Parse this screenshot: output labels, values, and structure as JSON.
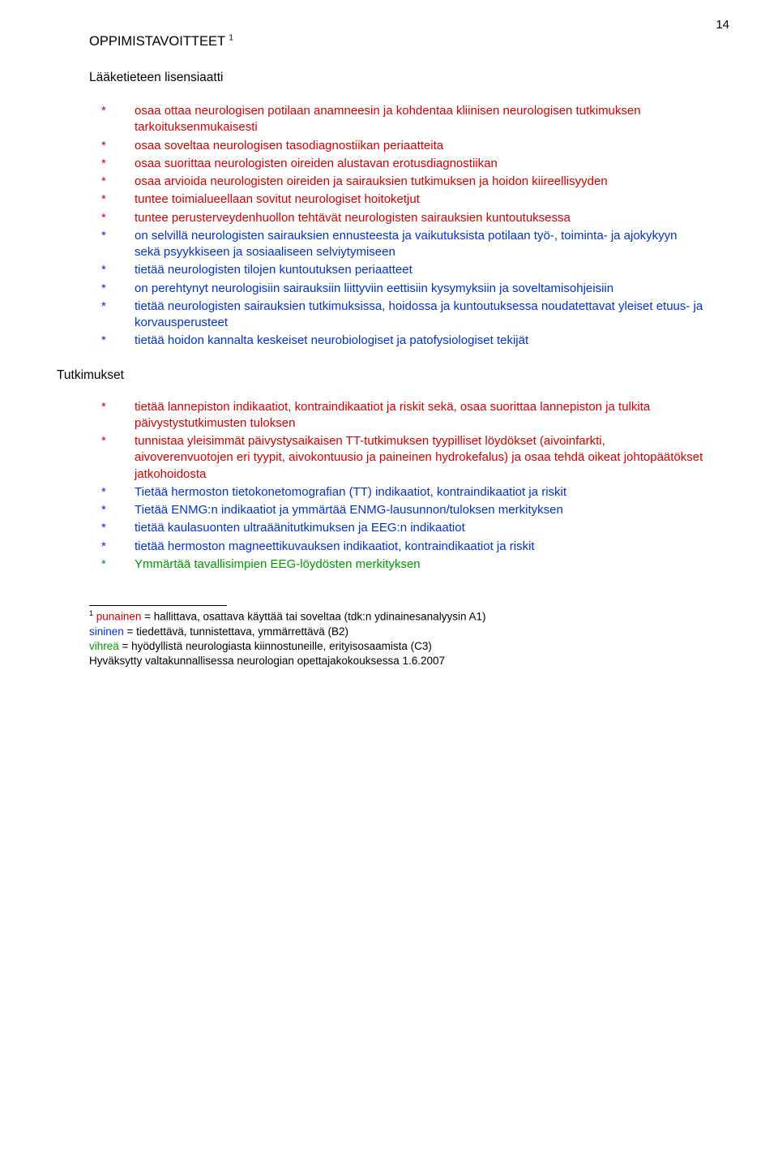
{
  "page_number": "14",
  "heading": "OPPIMISTAVOITTEET",
  "heading_sup": "1",
  "subheading": "Lääketieteen lisensiaatti",
  "section2_heading": "Tutkimukset",
  "colors": {
    "red": "#d40000",
    "blue": "#0033cc",
    "green": "#009900",
    "background": "#ffffff",
    "text": "#000000"
  },
  "list1": [
    {
      "color": "red",
      "text": "osaa ottaa neurologisen potilaan anamneesin ja kohdentaa kliinisen neurologisen tutkimuksen tarkoituksenmukaisesti"
    },
    {
      "color": "red",
      "text": "osaa soveltaa neurologisen tasodiagnostiikan periaatteita"
    },
    {
      "color": "red",
      "text": "osaa suorittaa neurologisten oireiden alustavan erotusdiagnostiikan"
    },
    {
      "color": "red",
      "text": "osaa arvioida neurologisten oireiden ja sairauksien tutkimuksen ja hoidon kiireellisyyden"
    },
    {
      "color": "red",
      "text": "tuntee toimialueellaan sovitut neurologiset hoitoketjut"
    },
    {
      "color": "red",
      "text": "tuntee perusterveydenhuollon tehtävät neurologisten sairauksien kuntoutuksessa"
    },
    {
      "color": "blue",
      "text": "on selvillä neurologisten sairauksien ennusteesta ja vaikutuksista potilaan työ-, toiminta- ja ajokykyyn sekä psyykkiseen ja sosiaaliseen selviytymiseen"
    },
    {
      "color": "blue",
      "text": "tietää neurologisten tilojen kuntoutuksen periaatteet"
    },
    {
      "color": "blue",
      "text": "on perehtynyt neurologisiin sairauksiin liittyviin eettisiin kysymyksiin ja soveltamisohjeisiin"
    },
    {
      "color": "blue",
      "text": "tietää neurologisten sairauksien tutkimuksissa, hoidossa ja kuntoutuksessa noudatettavat yleiset etuus- ja korvausperusteet"
    },
    {
      "color": "blue",
      "text": "tietää hoidon kannalta keskeiset neurobiologiset ja patofysiologiset tekijät"
    }
  ],
  "list2": [
    {
      "color": "red",
      "text": "tietää lannepiston indikaatiot, kontraindikaatiot ja riskit sekä, osaa suorittaa lannepiston ja tulkita päivystystutkimusten tuloksen"
    },
    {
      "color": "red",
      "text": "tunnistaa yleisimmät päivystysaikaisen TT-tutkimuksen tyypilliset löydökset (aivoinfarkti, aivoverenvuotojen eri tyypit, aivokontuusio ja paineinen hydrokefalus) ja osaa tehdä oikeat johtopäätökset jatkohoidosta"
    },
    {
      "color": "blue",
      "text": "Tietää hermoston tietokonetomografian (TT) indikaatiot, kontraindikaatiot ja riskit"
    },
    {
      "color": "blue",
      "text": "Tietää ENMG:n indikaatiot ja ymmärtää ENMG-lausunnon/tuloksen merkityksen"
    },
    {
      "color": "blue",
      "text": "tietää kaulasuonten ultraäänitutkimuksen ja EEG:n indikaatiot"
    },
    {
      "color": "blue",
      "text": "tietää hermoston magneettikuvauksen indikaatiot, kontraindikaatiot ja riskit"
    },
    {
      "color": "green",
      "text": "Ymmärtää tavallisimpien EEG-löydösten merkityksen"
    }
  ],
  "footnote": {
    "sup": "1",
    "line1_prefix": "punainen",
    "line1_rest": " = hallittava, osattava käyttää tai soveltaa (tdk:n ydinainesanalyysin A1)",
    "line2_prefix": "sininen",
    "line2_rest": " = tiedettävä, tunnistettava, ymmärrettävä (B2)",
    "line3_prefix": "vihreä",
    "line3_rest": " = hyödyllistä neurologiasta kiinnostuneille, erityisosaamista (C3)",
    "line4": "Hyväksytty valtakunnallisessa neurologian opettajakokouksessa 1.6.2007"
  }
}
